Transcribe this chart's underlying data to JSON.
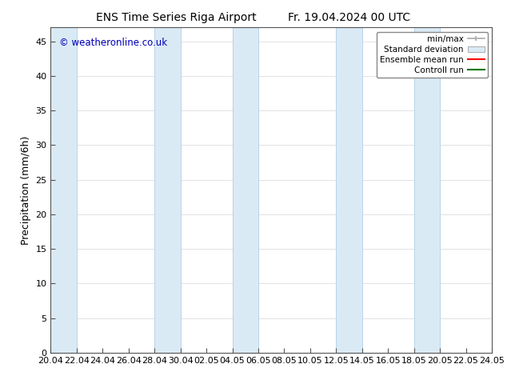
{
  "title_left": "ENS Time Series Riga Airport",
  "title_right": "Fr. 19.04.2024 00 UTC",
  "ylabel": "Precipitation (mm/6h)",
  "watermark": "© weatheronline.co.uk",
  "ylim": [
    0,
    47
  ],
  "yticks": [
    0,
    5,
    10,
    15,
    20,
    25,
    30,
    35,
    40,
    45
  ],
  "xtick_labels": [
    "20.04",
    "22.04",
    "24.04",
    "26.04",
    "28.04",
    "30.04",
    "02.05",
    "04.05",
    "06.05",
    "08.05",
    "10.05",
    "12.05",
    "14.05",
    "16.05",
    "18.05",
    "20.05",
    "22.05",
    "24.05"
  ],
  "band_color": "#daeaf5",
  "band_edge_color": "#b8d4e8",
  "band_pairs": [
    [
      0,
      2
    ],
    [
      8,
      10
    ],
    [
      14,
      16
    ],
    [
      22,
      24
    ],
    [
      28,
      30
    ]
  ],
  "background_color": "#ffffff",
  "legend_minmax_color": "#aaaaaa",
  "legend_std_facecolor": "#daeaf5",
  "legend_std_edgecolor": "#aaaaaa",
  "legend_mean_color": "#ff0000",
  "legend_ctrl_color": "#007700",
  "title_fontsize": 10,
  "tick_fontsize": 8,
  "ylabel_fontsize": 9,
  "watermark_color": "#0000bb",
  "n_xticks": 18,
  "xlim": [
    0,
    34
  ]
}
